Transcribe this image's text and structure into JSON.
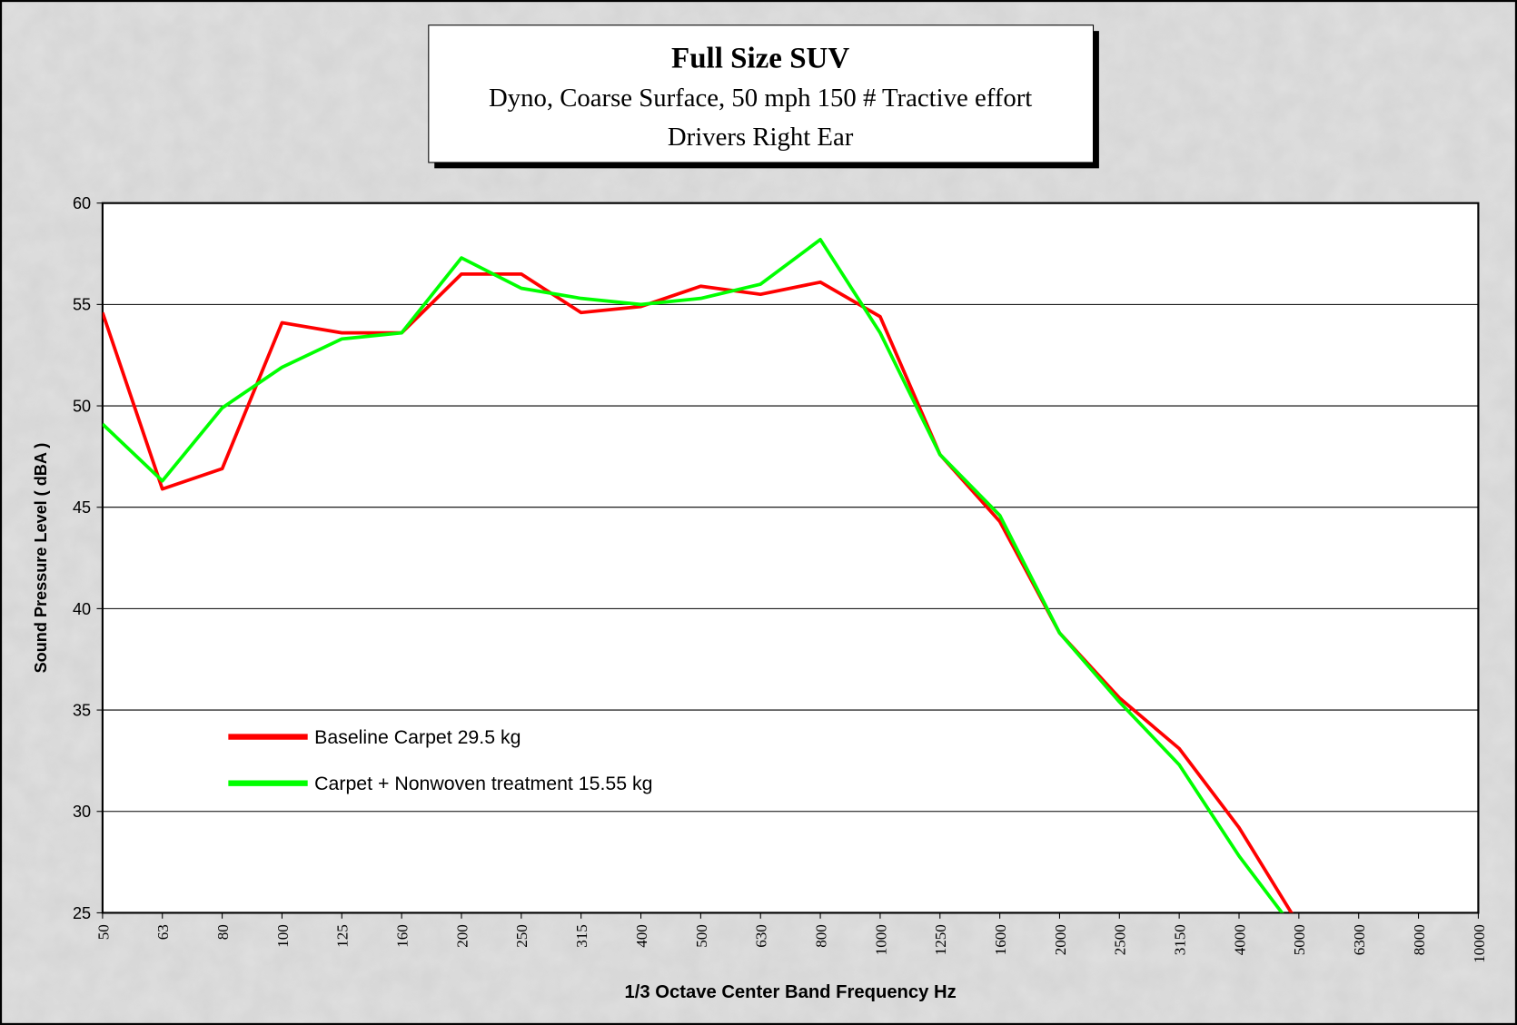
{
  "chart_data": {
    "type": "line",
    "title": "Full Size SUV",
    "subtitle": [
      "Dyno, Coarse Surface, 50 mph 150 # Tractive effort",
      "Drivers Right Ear"
    ],
    "x_label": "1/3 Octave Center Band Frequency Hz",
    "y_label": "Sound Pressure Level ( dBA )",
    "categories": [
      "50",
      "63",
      "80",
      "100",
      "125",
      "160",
      "200",
      "250",
      "315",
      "400",
      "500",
      "630",
      "800",
      "1000",
      "1250",
      "1600",
      "2000",
      "2500",
      "3150",
      "4000",
      "5000",
      "6300",
      "8000",
      "10000"
    ],
    "series": [
      {
        "name": "Baseline Carpet 29.5 kg",
        "color": "#ff0000",
        "values": [
          54.6,
          45.9,
          46.9,
          54.1,
          53.6,
          53.6,
          56.5,
          56.5,
          54.6,
          54.9,
          55.9,
          55.5,
          56.1,
          54.4,
          47.6,
          44.3,
          38.8,
          35.6,
          33.1,
          29.2,
          24.4,
          null,
          null,
          null
        ]
      },
      {
        "name": "Carpet + Nonwoven treatment 15.55 kg",
        "color": "#00ff00",
        "values": [
          49.1,
          46.3,
          49.9,
          51.9,
          53.3,
          53.6,
          57.3,
          55.8,
          55.3,
          55.0,
          55.3,
          56.0,
          58.2,
          53.6,
          47.6,
          44.6,
          38.8,
          35.4,
          32.3,
          27.8,
          23.9,
          null,
          null,
          null
        ]
      }
    ],
    "ylim": [
      25,
      60
    ],
    "yticks": [
      25,
      30,
      35,
      40,
      45,
      50,
      55,
      60
    ],
    "grid": true,
    "legend": "lower left"
  }
}
